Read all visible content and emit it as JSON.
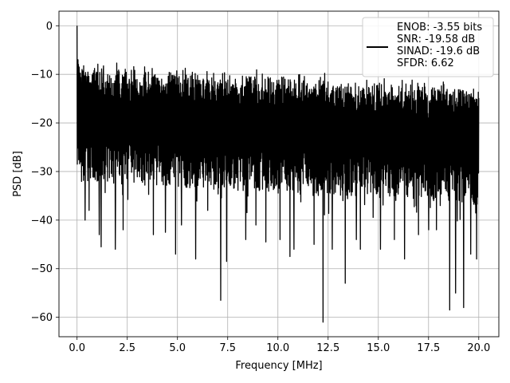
{
  "chart_data": {
    "type": "line",
    "title": "",
    "xlabel": "Frequency [MHz]",
    "ylabel": "PSD [dB]",
    "xlim": [
      -0.9,
      21.0
    ],
    "ylim": [
      -64.0,
      3.0
    ],
    "xticks": [
      0.0,
      2.5,
      5.0,
      7.5,
      10.0,
      12.5,
      15.0,
      17.5,
      20.0
    ],
    "xtick_labels": [
      "0.0",
      "2.5",
      "5.0",
      "7.5",
      "10.0",
      "12.5",
      "15.0",
      "17.5",
      "20.0"
    ],
    "yticks": [
      0,
      -10,
      -20,
      -30,
      -40,
      -50,
      -60
    ],
    "ytick_labels": [
      "0",
      "−10",
      "−20",
      "−30",
      "−40",
      "−50",
      "−60"
    ],
    "grid": true,
    "legend_position": "upper right",
    "legend_lines": [
      "ENOB: -3.55 bits",
      "SNR: -19.58 dB",
      "SINAD: -19.6 dB",
      "SFDR: 6.62"
    ],
    "series": [
      {
        "color": "#000000",
        "x_range": [
          0.0,
          20.0
        ],
        "y_band_upper": [
          -10,
          -14
        ],
        "y_band_lower": [
          -26,
          -31
        ],
        "peaks": [
          {
            "x": 0.0,
            "y": 0.0
          },
          {
            "x": 0.05,
            "y": -7.0
          },
          {
            "x": 0.1,
            "y": -8.5
          },
          {
            "x": 0.25,
            "y": -9.0
          },
          {
            "x": 0.5,
            "y": -10.5
          },
          {
            "x": 1.3,
            "y": -9.5
          },
          {
            "x": 2.6,
            "y": -11.0
          }
        ],
        "dips": [
          {
            "x": 0.4,
            "y": -40.0
          },
          {
            "x": 0.6,
            "y": -38.0
          },
          {
            "x": 1.1,
            "y": -43.0
          },
          {
            "x": 1.2,
            "y": -45.5
          },
          {
            "x": 1.9,
            "y": -46.0
          },
          {
            "x": 2.3,
            "y": -42.0
          },
          {
            "x": 3.8,
            "y": -43.0
          },
          {
            "x": 4.4,
            "y": -42.5
          },
          {
            "x": 4.9,
            "y": -47.0
          },
          {
            "x": 5.2,
            "y": -41.0
          },
          {
            "x": 5.9,
            "y": -48.0
          },
          {
            "x": 6.5,
            "y": -38.0
          },
          {
            "x": 7.15,
            "y": -56.5
          },
          {
            "x": 7.45,
            "y": -48.5
          },
          {
            "x": 8.4,
            "y": -44.0
          },
          {
            "x": 8.9,
            "y": -41.0
          },
          {
            "x": 9.4,
            "y": -44.5
          },
          {
            "x": 10.1,
            "y": -44.0
          },
          {
            "x": 10.6,
            "y": -47.5
          },
          {
            "x": 10.8,
            "y": -46.0
          },
          {
            "x": 11.8,
            "y": -45.0
          },
          {
            "x": 12.25,
            "y": -61.0
          },
          {
            "x": 12.7,
            "y": -46.0
          },
          {
            "x": 13.35,
            "y": -53.0
          },
          {
            "x": 13.9,
            "y": -44.0
          },
          {
            "x": 14.1,
            "y": -46.0
          },
          {
            "x": 15.1,
            "y": -46.0
          },
          {
            "x": 15.8,
            "y": -44.0
          },
          {
            "x": 16.3,
            "y": -48.0
          },
          {
            "x": 17.0,
            "y": -43.0
          },
          {
            "x": 17.5,
            "y": -42.0
          },
          {
            "x": 17.9,
            "y": -42.0
          },
          {
            "x": 18.55,
            "y": -58.5
          },
          {
            "x": 18.85,
            "y": -55.0
          },
          {
            "x": 19.25,
            "y": -58.0
          },
          {
            "x": 19.6,
            "y": -47.0
          },
          {
            "x": 19.9,
            "y": -48.0
          }
        ]
      }
    ]
  }
}
